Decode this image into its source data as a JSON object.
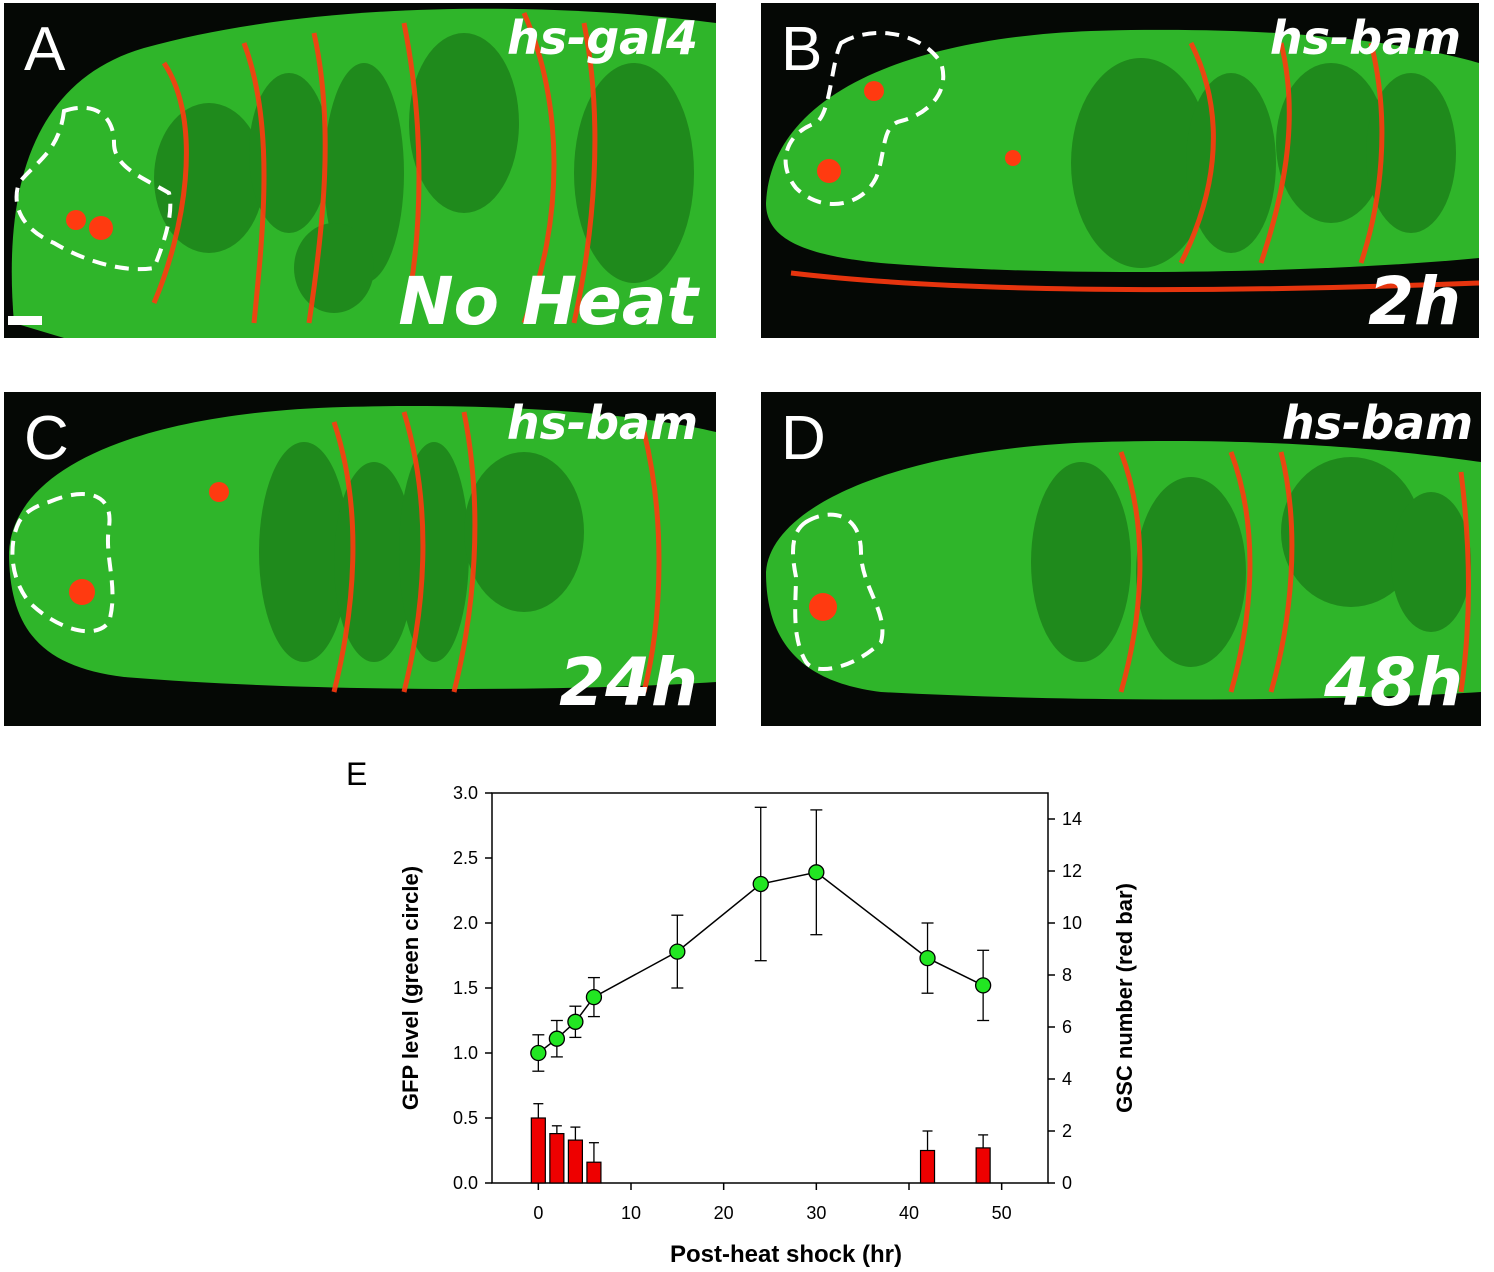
{
  "panels": [
    {
      "letter": "A",
      "genotype": "hs-gal4",
      "condition": "No Heat"
    },
    {
      "letter": "B",
      "genotype": "hs-bam",
      "condition": "2h"
    },
    {
      "letter": "C",
      "genotype": "hs-bam",
      "condition": "24h"
    },
    {
      "letter": "D",
      "genotype": "hs-bam",
      "condition": "48h"
    }
  ],
  "panel_e_letter": "E",
  "colors": {
    "green_marker": "#22e622",
    "red_bar": "#ee0000",
    "axis": "#000000",
    "tissue_green": "#2fb52a",
    "tissue_red": "#ff3a10"
  },
  "chart_data": {
    "type": "line",
    "xlabel": "Post-heat shock (hr)",
    "ylabel": "GFP level (green circle)",
    "y2label": "GSC number (red bar)",
    "xlim": [
      -5,
      55
    ],
    "xticks": [
      0,
      10,
      20,
      30,
      40,
      50
    ],
    "xtick_labels": [
      "0",
      "10",
      "20",
      "30",
      "40",
      "50"
    ],
    "ylim": [
      0,
      3
    ],
    "yticks": [
      0,
      0.5,
      1,
      1.5,
      2,
      2.5,
      3
    ],
    "ytick_labels": [
      "0.0",
      "0.5",
      "1.0",
      "1.5",
      "2.0",
      "2.5",
      "3.0"
    ],
    "y2lim": [
      0,
      15
    ],
    "y2ticks": [
      0,
      2,
      4,
      6,
      8,
      10,
      12,
      14
    ],
    "y2tick_labels": [
      "0",
      "2",
      "4",
      "6",
      "8",
      "10",
      "12",
      "14"
    ],
    "grid": false,
    "series": [
      {
        "axis": "left",
        "style": "line-with-green-circles",
        "x": [
          0,
          2,
          4,
          6,
          15,
          24,
          30,
          42,
          48
        ],
        "y": [
          1.0,
          1.11,
          1.24,
          1.43,
          1.78,
          2.3,
          2.39,
          1.73,
          1.52
        ],
        "err": [
          0.14,
          0.14,
          0.12,
          0.15,
          0.28,
          0.59,
          0.48,
          0.27,
          0.27
        ]
      },
      {
        "axis": "right",
        "style": "red-bars",
        "x": [
          0,
          2,
          4,
          6,
          42,
          48
        ],
        "y": [
          2.5,
          1.9,
          1.65,
          0.8,
          1.25,
          1.35
        ],
        "err": [
          0.55,
          0.3,
          0.5,
          0.75,
          0.75,
          0.5
        ]
      }
    ]
  }
}
